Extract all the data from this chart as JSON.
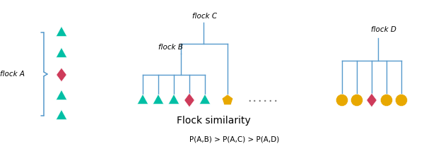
{
  "bg_color": "#ffffff",
  "teal": "#00BFA5",
  "red_diamond": "#CE3B5A",
  "gold": "#E8A800",
  "blue_line": "#5599CC",
  "flock_A_label": "flock A",
  "flock_B_label": "flock B",
  "flock_C_label": "flock C",
  "flock_D_label": "flock D",
  "dots_label": "......",
  "similarity_title": "Flock similarity",
  "similarity_formula": "P(A,B) > P(A,C) > P(A,D)",
  "figw": 6.34,
  "figh": 2.14
}
